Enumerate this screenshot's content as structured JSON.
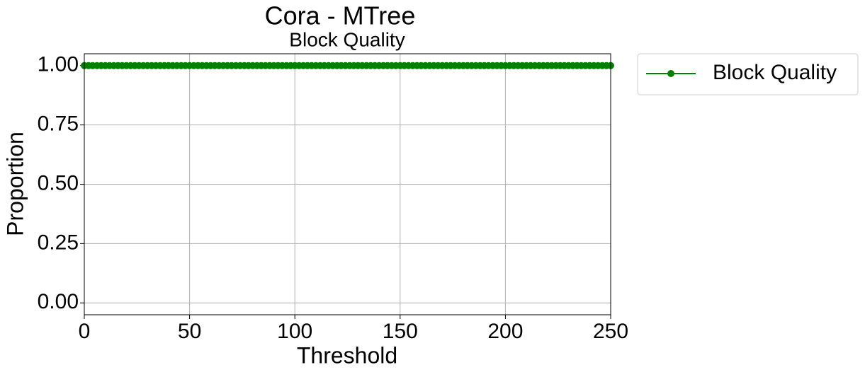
{
  "chart_data": {
    "type": "line",
    "title": "Cora - MTree",
    "subtitle": "Block Quality",
    "x_label": "Threshold",
    "y_label": "Proportion",
    "x": [
      0,
      2,
      4,
      6,
      8,
      10,
      12,
      14,
      16,
      18,
      20,
      22,
      24,
      26,
      28,
      30,
      32,
      34,
      36,
      38,
      40,
      42,
      44,
      46,
      48,
      50,
      52,
      54,
      56,
      58,
      60,
      62,
      64,
      66,
      68,
      70,
      72,
      74,
      76,
      78,
      80,
      82,
      84,
      86,
      88,
      90,
      92,
      94,
      96,
      98,
      100,
      102,
      104,
      106,
      108,
      110,
      112,
      114,
      116,
      118,
      120,
      122,
      124,
      126,
      128,
      130,
      132,
      134,
      136,
      138,
      140,
      142,
      144,
      146,
      148,
      150,
      152,
      154,
      156,
      158,
      160,
      162,
      164,
      166,
      168,
      170,
      172,
      174,
      176,
      178,
      180,
      182,
      184,
      186,
      188,
      190,
      192,
      194,
      196,
      198,
      200,
      202,
      204,
      206,
      208,
      210,
      212,
      214,
      216,
      218,
      220,
      222,
      224,
      226,
      228,
      230,
      232,
      234,
      236,
      238,
      240,
      242,
      244,
      246,
      248,
      250
    ],
    "series": [
      {
        "name": "Block Quality",
        "color": "#008000",
        "values": [
          1,
          1,
          1,
          1,
          1,
          1,
          1,
          1,
          1,
          1,
          1,
          1,
          1,
          1,
          1,
          1,
          1,
          1,
          1,
          1,
          1,
          1,
          1,
          1,
          1,
          1,
          1,
          1,
          1,
          1,
          1,
          1,
          1,
          1,
          1,
          1,
          1,
          1,
          1,
          1,
          1,
          1,
          1,
          1,
          1,
          1,
          1,
          1,
          1,
          1,
          1,
          1,
          1,
          1,
          1,
          1,
          1,
          1,
          1,
          1,
          1,
          1,
          1,
          1,
          1,
          1,
          1,
          1,
          1,
          1,
          1,
          1,
          1,
          1,
          1,
          1,
          1,
          1,
          1,
          1,
          1,
          1,
          1,
          1,
          1,
          1,
          1,
          1,
          1,
          1,
          1,
          1,
          1,
          1,
          1,
          1,
          1,
          1,
          1,
          1,
          1,
          1,
          1,
          1,
          1,
          1,
          1,
          1,
          1,
          1,
          1,
          1,
          1,
          1,
          1,
          1,
          1,
          1,
          1,
          1,
          1,
          1,
          1,
          1,
          1,
          1
        ]
      }
    ],
    "xlim": [
      0,
      250
    ],
    "xticks": [
      0,
      50,
      100,
      150,
      200,
      250
    ],
    "ylim": [
      -0.05,
      1.05
    ],
    "yticks": [
      {
        "value": 0,
        "label": "0.00"
      },
      {
        "value": 0.25,
        "label": "0.25"
      },
      {
        "value": 0.5,
        "label": "0.50"
      },
      {
        "value": 0.75,
        "label": "0.75"
      },
      {
        "value": 1,
        "label": "1.00"
      }
    ],
    "grid": true,
    "legend": "outside-right"
  }
}
